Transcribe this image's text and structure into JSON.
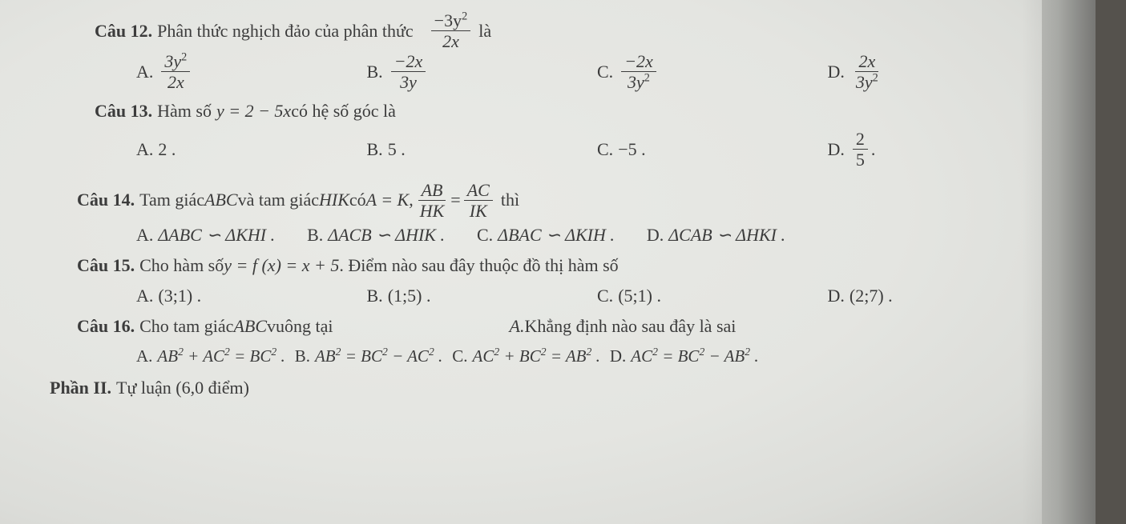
{
  "colors": {
    "text": "#3c3c3c",
    "paper": "#e5e6e2",
    "rule": "#3c3c3c"
  },
  "typography": {
    "family": "Times New Roman",
    "base_size_pt": 16,
    "label_weight": "bold"
  },
  "q12": {
    "label": "Câu 12.",
    "stem_before": "Phân thức nghịch đảo của phân thức",
    "stem_frac_num": "−3y",
    "stem_frac_num_sup": "2",
    "stem_frac_den": "2x",
    "stem_after": "là",
    "A": {
      "label": "A.",
      "num": "3y",
      "num_sup": "2",
      "den": "2x"
    },
    "B": {
      "label": "B.",
      "num": "−2x",
      "den": "3y"
    },
    "C": {
      "label": "C.",
      "num": "−2x",
      "den": "3y",
      "den_sup": "2"
    },
    "D": {
      "label": "D.",
      "num": "2x",
      "den": "3y",
      "den_sup": "2"
    }
  },
  "q13": {
    "label": "Câu 13.",
    "stem_before": "Hàm số ",
    "stem_eq": "y = 2 − 5x",
    "stem_after": " có hệ số góc là",
    "A": {
      "label": "A.",
      "text": "2 ."
    },
    "B": {
      "label": "B.",
      "text": "5 ."
    },
    "C": {
      "label": "C.",
      "text": "−5 ."
    },
    "D": {
      "label": "D.",
      "num": "2",
      "den": "5",
      "after": "."
    }
  },
  "q14": {
    "label": "Câu 14.",
    "stem_before": "Tam giác ",
    "ABC": "ABC",
    "stem_mid1": " và tam giác ",
    "HIK": "HIK",
    "stem_mid2": " có ",
    "eq1": "A = K",
    "comma": " , ",
    "frac1_num": "AB",
    "frac1_den": "HK",
    "equals": "=",
    "frac2_num": "AC",
    "frac2_den": "IK",
    "stem_after": " thì",
    "A": {
      "label": "A.",
      "text": "ΔABC ∽ ΔKHI ."
    },
    "B": {
      "label": "B.",
      "text": "ΔACB ∽ ΔHIK ."
    },
    "C": {
      "label": "C.",
      "text": "ΔBAC ∽ ΔKIH ."
    },
    "D": {
      "label": "D.",
      "text": "ΔCAB ∽ ΔHKI ."
    }
  },
  "q15": {
    "label": "Câu 15.",
    "stem_before": "Cho hàm số ",
    "eq": "y = f (x) = x + 5",
    "stem_after": ". Điểm nào sau đây thuộc đồ thị hàm số",
    "A": {
      "label": "A.",
      "text": "(3;1) ."
    },
    "B": {
      "label": "B.",
      "text": "(1;5) ."
    },
    "C": {
      "label": "C.",
      "text": "(5;1) ."
    },
    "D": {
      "label": "D.",
      "text": "(2;7) ."
    }
  },
  "q16": {
    "label": "Câu 16.",
    "stem_left": "Cho tam giác ",
    "ABC": "ABC",
    "stem_left2": " vuông tại",
    "stem_right_label": "A.",
    "stem_right": " Khẳng định nào sau đây là sai",
    "A": {
      "label": "A.",
      "lhs": "AB",
      "plus": " + ",
      "mid": "AC",
      "eq": " = ",
      "rhs": "BC",
      "dot": " ."
    },
    "B": {
      "label": "B.",
      "lhs": "AB",
      "eq": " = ",
      "mid": "BC",
      "minus": " − ",
      "rhs": "AC",
      "dot": " ."
    },
    "C": {
      "label": "C.",
      "lhs": "AC",
      "plus": " + ",
      "mid": "BC",
      "eq": " = ",
      "rhs": "AB",
      "dot": " ."
    },
    "D": {
      "label": "D.",
      "lhs": "AC",
      "eq": " = ",
      "mid": "BC",
      "minus": " − ",
      "rhs": "AB",
      "dot": " ."
    }
  },
  "phan2": {
    "label": "Phần II.",
    "text": " Tự luận (6,0 điểm)"
  }
}
